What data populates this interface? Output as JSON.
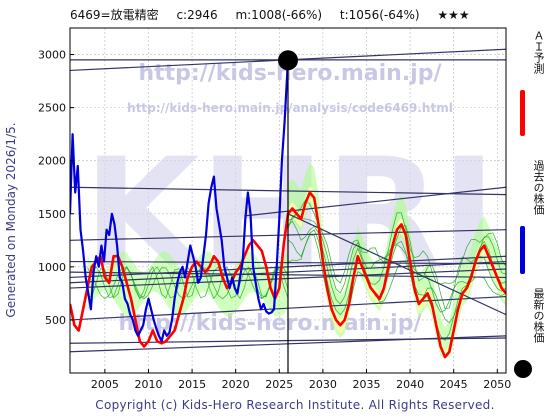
{
  "header": {
    "title": "6469=放電精密",
    "current": "c:2946",
    "m": "m:1008(-66%)",
    "t": "t:1056(-64%)",
    "stars": "★★★"
  },
  "watermarks": {
    "url_main": "http://kids-hero.main.jp/",
    "url_analysis": "http://kids-hero.main.jp/analysis/code6469.html",
    "big_logo": "KHRI"
  },
  "side_text": "Generated on Monday 2026/1/5.",
  "footer": "Copyright (c) Kids-Hero Research Institute. All Rights Reserved.",
  "legend": {
    "ai": "ＡＩ予測",
    "past": "過去の株価",
    "latest": "最新の株価"
  },
  "colors": {
    "ai": "#ff0000",
    "past": "#0000dd",
    "projection": "#22aa22",
    "band_fill": "#ffffaa",
    "green_fill": "#aaff88",
    "trend": "#333366"
  },
  "chart_data": {
    "type": "line",
    "xlim": [
      2001,
      2051
    ],
    "ylim": [
      0,
      3250
    ],
    "x_ticks": [
      2005,
      2010,
      2015,
      2020,
      2025,
      2030,
      2035,
      2040,
      2045,
      2050
    ],
    "y_ticks": [
      500,
      1000,
      1500,
      2000,
      2500,
      3000
    ],
    "grid": true,
    "current_point": {
      "x": 2026,
      "y": 2946
    },
    "current_vline": 2026,
    "trend_lines": [
      {
        "x": [
          2001,
          2051
        ],
        "y": [
          2850,
          3050
        ]
      },
      {
        "x": [
          2001,
          2051
        ],
        "y": [
          2950,
          2950
        ]
      },
      {
        "x": [
          2001,
          2051
        ],
        "y": [
          1250,
          1350
        ]
      },
      {
        "x": [
          2001,
          2051
        ],
        "y": [
          850,
          1050
        ]
      },
      {
        "x": [
          2001,
          2051
        ],
        "y": [
          900,
          1100
        ]
      },
      {
        "x": [
          2001,
          2051
        ],
        "y": [
          950,
          900
        ]
      },
      {
        "x": [
          2001,
          2051
        ],
        "y": [
          1050,
          1030
        ]
      },
      {
        "x": [
          2001,
          2051
        ],
        "y": [
          800,
          980
        ]
      },
      {
        "x": [
          2001,
          2051
        ],
        "y": [
          500,
          720
        ]
      },
      {
        "x": [
          2001,
          2051
        ],
        "y": [
          280,
          330
        ]
      },
      {
        "x": [
          2001,
          2051
        ],
        "y": [
          200,
          350
        ]
      },
      {
        "x": [
          2001,
          2051
        ],
        "y": [
          1750,
          1680
        ]
      },
      {
        "x": [
          2021,
          2051
        ],
        "y": [
          1480,
          1750
        ]
      },
      {
        "x": [
          2026,
          2051
        ],
        "y": [
          1500,
          550
        ]
      }
    ],
    "past_series": {
      "x": [
        2001.0,
        2001.3,
        2001.6,
        2001.9,
        2002.2,
        2002.5,
        2002.8,
        2003.1,
        2003.4,
        2003.7,
        2004.0,
        2004.3,
        2004.6,
        2004.9,
        2005.2,
        2005.5,
        2005.8,
        2006.1,
        2006.4,
        2006.7,
        2007.0,
        2007.3,
        2007.6,
        2007.9,
        2008.2,
        2008.5,
        2008.8,
        2009.1,
        2009.4,
        2009.7,
        2010.0,
        2010.3,
        2010.6,
        2010.9,
        2011.2,
        2011.5,
        2011.8,
        2012.1,
        2012.4,
        2012.7,
        2013.0,
        2013.3,
        2013.6,
        2013.9,
        2014.2,
        2014.5,
        2014.8,
        2015.1,
        2015.4,
        2015.7,
        2016.0,
        2016.3,
        2016.6,
        2016.9,
        2017.2,
        2017.5,
        2017.8,
        2018.1,
        2018.4,
        2018.7,
        2019.0,
        2019.3,
        2019.6,
        2019.9,
        2020.2,
        2020.5,
        2020.8,
        2021.1,
        2021.4,
        2021.7,
        2022.0,
        2022.3,
        2022.6,
        2022.9,
        2023.2,
        2023.5,
        2023.8,
        2024.1,
        2024.4,
        2024.7,
        2025.0,
        2025.3,
        2025.6,
        2025.9,
        2026.0
      ],
      "y": [
        1500,
        2250,
        1700,
        1950,
        1350,
        1150,
        900,
        750,
        600,
        950,
        1100,
        1000,
        1200,
        1050,
        1350,
        1300,
        1500,
        1400,
        1200,
        900,
        850,
        700,
        650,
        550,
        500,
        400,
        350,
        400,
        450,
        600,
        700,
        600,
        500,
        420,
        350,
        300,
        400,
        350,
        380,
        500,
        700,
        850,
        950,
        1000,
        900,
        1050,
        1200,
        1100,
        1000,
        850,
        900,
        1100,
        1300,
        1600,
        1750,
        1850,
        1550,
        1400,
        1250,
        1000,
        900,
        800,
        900,
        800,
        750,
        900,
        1050,
        1450,
        1700,
        1500,
        1000,
        850,
        700,
        600,
        650,
        580,
        560,
        570,
        600,
        1000,
        1450,
        2000,
        2350,
        2800,
        2946
      ]
    },
    "ai_series": {
      "x": [
        2001.0,
        2001.5,
        2002.0,
        2002.5,
        2003.0,
        2003.5,
        2004.0,
        2004.5,
        2005.0,
        2005.5,
        2006.0,
        2006.5,
        2007.0,
        2007.5,
        2008.0,
        2008.5,
        2009.0,
        2009.5,
        2010.0,
        2010.5,
        2011.0,
        2011.5,
        2012.0,
        2012.5,
        2013.0,
        2013.5,
        2014.0,
        2014.5,
        2015.0,
        2015.5,
        2016.0,
        2016.5,
        2017.0,
        2017.5,
        2018.0,
        2018.5,
        2019.0,
        2019.5,
        2020.0,
        2020.5,
        2021.0,
        2021.5,
        2022.0,
        2022.5,
        2023.0,
        2023.5,
        2024.0,
        2024.5,
        2025.0,
        2025.5,
        2026.0,
        2026.5,
        2027.0,
        2027.5,
        2028.0,
        2028.5,
        2029.0,
        2029.5,
        2030.0,
        2030.5,
        2031.0,
        2031.5,
        2032.0,
        2032.5,
        2033.0,
        2033.5,
        2034.0,
        2034.5,
        2035.0,
        2035.5,
        2036.0,
        2036.5,
        2037.0,
        2037.5,
        2038.0,
        2038.5,
        2039.0,
        2039.5,
        2040.0,
        2040.5,
        2041.0,
        2041.5,
        2042.0,
        2042.5,
        2043.0,
        2043.5,
        2044.0,
        2044.5,
        2045.0,
        2045.5,
        2046.0,
        2046.5,
        2047.0,
        2047.5,
        2048.0,
        2048.5,
        2049.0,
        2049.5,
        2050.0,
        2050.5,
        2051.0
      ],
      "y": [
        650,
        450,
        400,
        600,
        800,
        1000,
        1050,
        1100,
        900,
        850,
        1100,
        1100,
        1000,
        850,
        700,
        500,
        300,
        250,
        300,
        400,
        300,
        280,
        300,
        350,
        400,
        550,
        700,
        900,
        1000,
        1050,
        1000,
        950,
        1000,
        1100,
        1050,
        900,
        800,
        850,
        950,
        1000,
        1100,
        1200,
        1250,
        1200,
        1150,
        1000,
        800,
        700,
        800,
        1200,
        1500,
        1550,
        1500,
        1450,
        1600,
        1700,
        1650,
        1400,
        1050,
        800,
        600,
        500,
        450,
        500,
        650,
        900,
        1100,
        1000,
        900,
        800,
        750,
        700,
        800,
        1000,
        1200,
        1350,
        1400,
        1300,
        1050,
        800,
        650,
        700,
        750,
        650,
        450,
        250,
        150,
        200,
        400,
        600,
        750,
        800,
        900,
        1050,
        1150,
        1200,
        1100,
        1000,
        900,
        800,
        750
      ]
    }
  }
}
